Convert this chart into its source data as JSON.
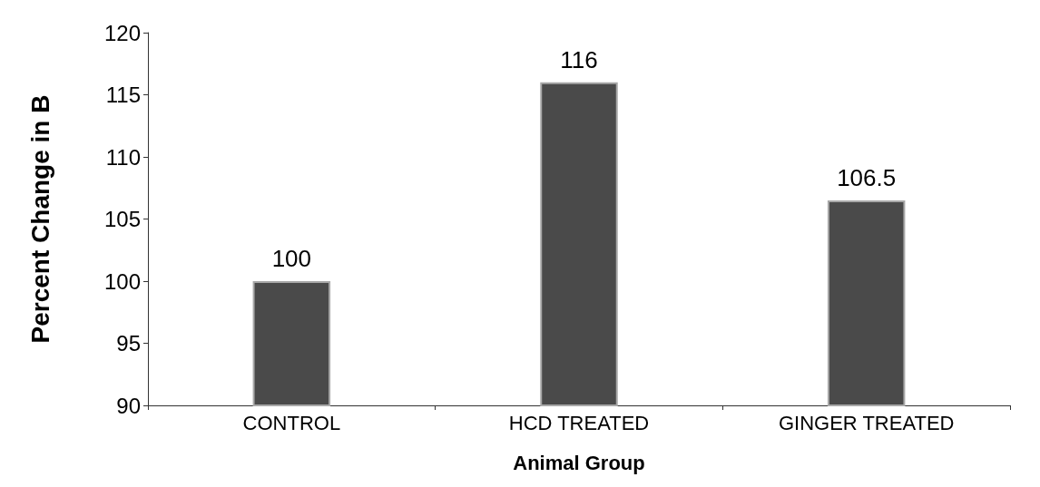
{
  "chart_data": {
    "type": "bar",
    "xlabel": "Animal Group",
    "ylabel": "Percent Change in B",
    "categories": [
      "CONTROL",
      "HCD TREATED",
      "GINGER TREATED"
    ],
    "values": [
      100,
      116,
      106.5
    ],
    "color": "#4a4a4a",
    "ylim": [
      90,
      120
    ],
    "yticks": [
      90,
      95,
      100,
      105,
      110,
      115,
      120
    ],
    "grid": false,
    "data_labels": true
  }
}
